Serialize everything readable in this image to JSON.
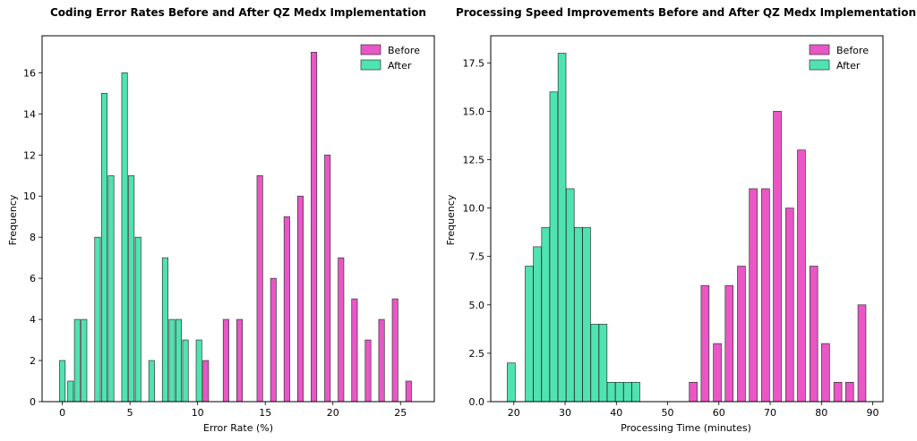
{
  "chart_data": [
    {
      "type": "bar",
      "title": "Coding Error Rates Before and After QZ Medx Implementation",
      "xlabel": "Error Rate (%)",
      "ylabel": "Frequency",
      "xlim": [
        -1.5,
        27.5
      ],
      "ylim": [
        0,
        17.8
      ],
      "xticks": [
        0,
        5,
        10,
        15,
        20,
        25
      ],
      "yticks": [
        0,
        2,
        4,
        6,
        8,
        10,
        12,
        14,
        16
      ],
      "legend_position": "top-right",
      "bar_width": 0.42,
      "series": [
        {
          "name": "Before",
          "color": "#e957c6",
          "x": [
            10.6,
            12.1,
            13.1,
            14.6,
            15.6,
            16.6,
            17.6,
            18.6,
            19.6,
            20.6,
            21.6,
            22.6,
            23.6,
            24.6,
            25.6
          ],
          "values": [
            2,
            4,
            4,
            11,
            6,
            9,
            10,
            17,
            12,
            7,
            5,
            3,
            4,
            5,
            1
          ]
        },
        {
          "name": "After",
          "color": "#4fe3b2",
          "x": [
            0.0,
            0.6,
            1.1,
            1.6,
            2.6,
            3.1,
            3.6,
            4.6,
            5.1,
            5.6,
            6.6,
            7.6,
            8.1,
            8.6,
            9.1,
            10.1
          ],
          "values": [
            2,
            1,
            4,
            4,
            8,
            15,
            11,
            16,
            11,
            8,
            2,
            7,
            4,
            4,
            3,
            3
          ]
        }
      ]
    },
    {
      "type": "bar",
      "title": "Processing Speed Improvements Before and After QZ Medx Implementation",
      "xlabel": "Processing Time (minutes)",
      "ylabel": "Frequency",
      "xlim": [
        15.5,
        92
      ],
      "ylim": [
        0,
        18.9
      ],
      "xticks": [
        20,
        30,
        40,
        50,
        60,
        70,
        80,
        90
      ],
      "yticks": [
        0.0,
        2.5,
        5.0,
        7.5,
        10.0,
        12.5,
        15.0,
        17.5
      ],
      "legend_position": "top-right",
      "bar_width": 1.55,
      "series": [
        {
          "name": "Before",
          "color": "#e957c6",
          "x": [
            55.0,
            57.3,
            59.7,
            62.0,
            64.4,
            66.7,
            69.1,
            71.4,
            73.8,
            76.1,
            78.5,
            80.8,
            83.2,
            85.5,
            87.9
          ],
          "values": [
            1,
            6,
            3,
            6,
            7,
            11,
            11,
            15,
            10,
            13,
            7,
            3,
            1,
            1,
            5
          ]
        },
        {
          "name": "After",
          "color": "#4fe3b2",
          "x": [
            19.5,
            23.0,
            24.6,
            26.2,
            27.8,
            29.4,
            31.0,
            32.6,
            34.2,
            35.8,
            37.4,
            39.0,
            40.6,
            42.2,
            43.8
          ],
          "values": [
            2,
            7,
            8,
            9,
            16,
            18,
            11,
            9,
            9,
            4,
            4,
            1,
            1,
            1,
            1
          ]
        }
      ]
    }
  ]
}
